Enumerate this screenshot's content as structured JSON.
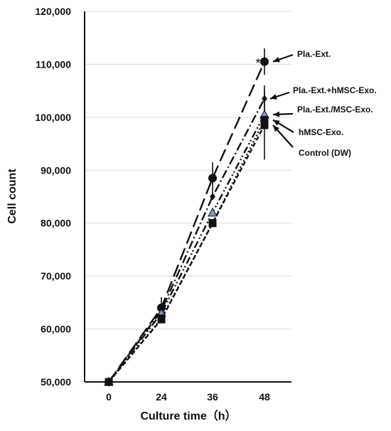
{
  "chart_data": {
    "type": "line",
    "xlabel": "Culture time（h）",
    "ylabel": "Cell count",
    "x": [
      0,
      24,
      36,
      48
    ],
    "xticks": [
      "0",
      "24",
      "36",
      "48"
    ],
    "ylim": [
      50000,
      120000
    ],
    "yticks": [
      "50,000",
      "60,000",
      "70,000",
      "80,000",
      "90,000",
      "100,000",
      "110,000",
      "120,000"
    ],
    "grid": "horizontal",
    "series": [
      {
        "name": "Pla.-Ext.",
        "values": [
          50000,
          64000,
          88500,
          110500
        ],
        "error": [
          0,
          2000,
          3000,
          2500
        ],
        "marker": "circle",
        "dash": "long-dash"
      },
      {
        "name": "Pla.-Ext.+hMSC-Exo.",
        "values": [
          50000,
          63500,
          85000,
          103500
        ],
        "error": [
          0,
          0,
          0,
          2500
        ],
        "marker": "diamond",
        "dash": "dash-dot"
      },
      {
        "name": "Pla.-Ext./MSC-Exo.",
        "values": [
          50000,
          63000,
          82000,
          100500
        ],
        "error": [
          0,
          0,
          0,
          0
        ],
        "marker": "triangle",
        "dash": "dash-dot-dot"
      },
      {
        "name": "hMSC-Exo.",
        "values": [
          50000,
          62000,
          80000,
          99500
        ],
        "error": [
          0,
          0,
          0,
          0
        ],
        "marker": "square",
        "dash": "dot"
      },
      {
        "name": "Control (DW)",
        "values": [
          50000,
          61800,
          80000,
          98500
        ],
        "error": [
          0,
          0,
          0,
          6500
        ],
        "marker": "square",
        "dash": "short-dash"
      }
    ],
    "annotation": "*",
    "colors": {
      "line": "#111111",
      "marker": "#111111",
      "triangle_fill": "#7a9cc6",
      "grid": "#d9d9d9"
    }
  }
}
